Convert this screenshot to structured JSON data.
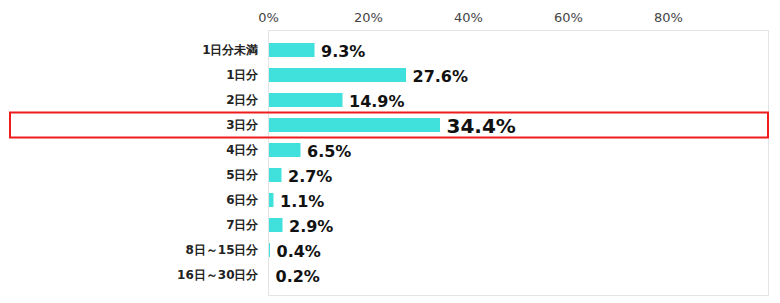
{
  "chart_data": {
    "type": "bar",
    "orientation": "horizontal",
    "categories": [
      "1日分未満",
      "1日分",
      "2日分",
      "3日分",
      "4日分",
      "5日分",
      "6日分",
      "7日分",
      "8日～15日分",
      "16日～30日分"
    ],
    "values": [
      9.3,
      27.6,
      14.9,
      34.4,
      6.5,
      2.7,
      1.1,
      2.9,
      0.4,
      0.2
    ],
    "value_labels": [
      "9.3%",
      "27.6%",
      "14.9%",
      "34.4%",
      "6.5%",
      "2.7%",
      "1.1%",
      "2.9%",
      "0.4%",
      "0.2%"
    ],
    "color": "#40e0dc",
    "xlim": [
      0,
      100
    ],
    "xticks": [
      {
        "value": 0,
        "label": "0%"
      },
      {
        "value": 20,
        "label": "20%"
      },
      {
        "value": 40,
        "label": "40%"
      },
      {
        "value": 60,
        "label": "60%"
      },
      {
        "value": 80,
        "label": "80%"
      }
    ],
    "grid": false,
    "data_labels": true
  }
}
